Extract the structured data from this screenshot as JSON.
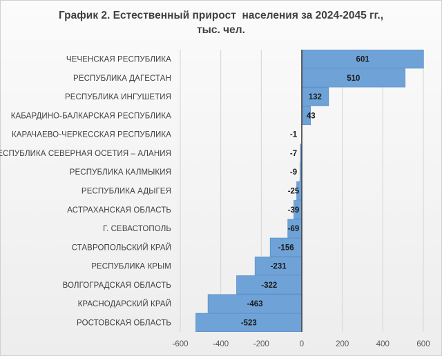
{
  "chart_data": {
    "type": "bar",
    "orientation": "horizontal",
    "title_line1": "График 2. Естественный прирост  населения за 2024-2045 гг.,",
    "title_line2": "тыс. чел.",
    "categories": [
      "ЧЕЧЕНСКАЯ РЕСПУБЛИКА",
      "РЕСПУБЛИКА ДАГЕСТАН",
      "РЕСПУБЛИКА ИНГУШЕТИЯ",
      "КАБАРДИНО-БАЛКАРСКАЯ РЕСПУБЛИКА",
      "КАРАЧАЕВО-ЧЕРКЕССКАЯ РЕСПУБЛИКА",
      "РЕСПУБЛИКА СЕВЕРНАЯ ОСЕТИЯ – АЛАНИЯ",
      "РЕСПУБЛИКА КАЛМЫКИЯ",
      "РЕСПУБЛИКА АДЫГЕЯ",
      "АСТРАХАНСКАЯ ОБЛАСТЬ",
      "Г. СЕВАСТОПОЛЬ",
      "СТАВРОПОЛЬСКИЙ КРАЙ",
      "РЕСПУБЛИКА КРЫМ",
      "ВОЛГОГРАДСКАЯ ОБЛАСТЬ",
      "КРАСНОДАРСКИЙ КРАЙ",
      "РОСТОВСКАЯ ОБЛАСТЬ"
    ],
    "values": [
      601,
      510,
      132,
      43,
      -1,
      -7,
      -9,
      -25,
      -39,
      -69,
      -156,
      -231,
      -322,
      -463,
      -523
    ],
    "xlim": [
      -600,
      600
    ],
    "xticks": [
      "-600",
      "-400",
      "-200",
      "0",
      "200",
      "400",
      "600"
    ],
    "grid": "vertical",
    "legend": "none",
    "bar_color": "#6fa3d8",
    "bar_edge_color": "#5b8fc7"
  }
}
